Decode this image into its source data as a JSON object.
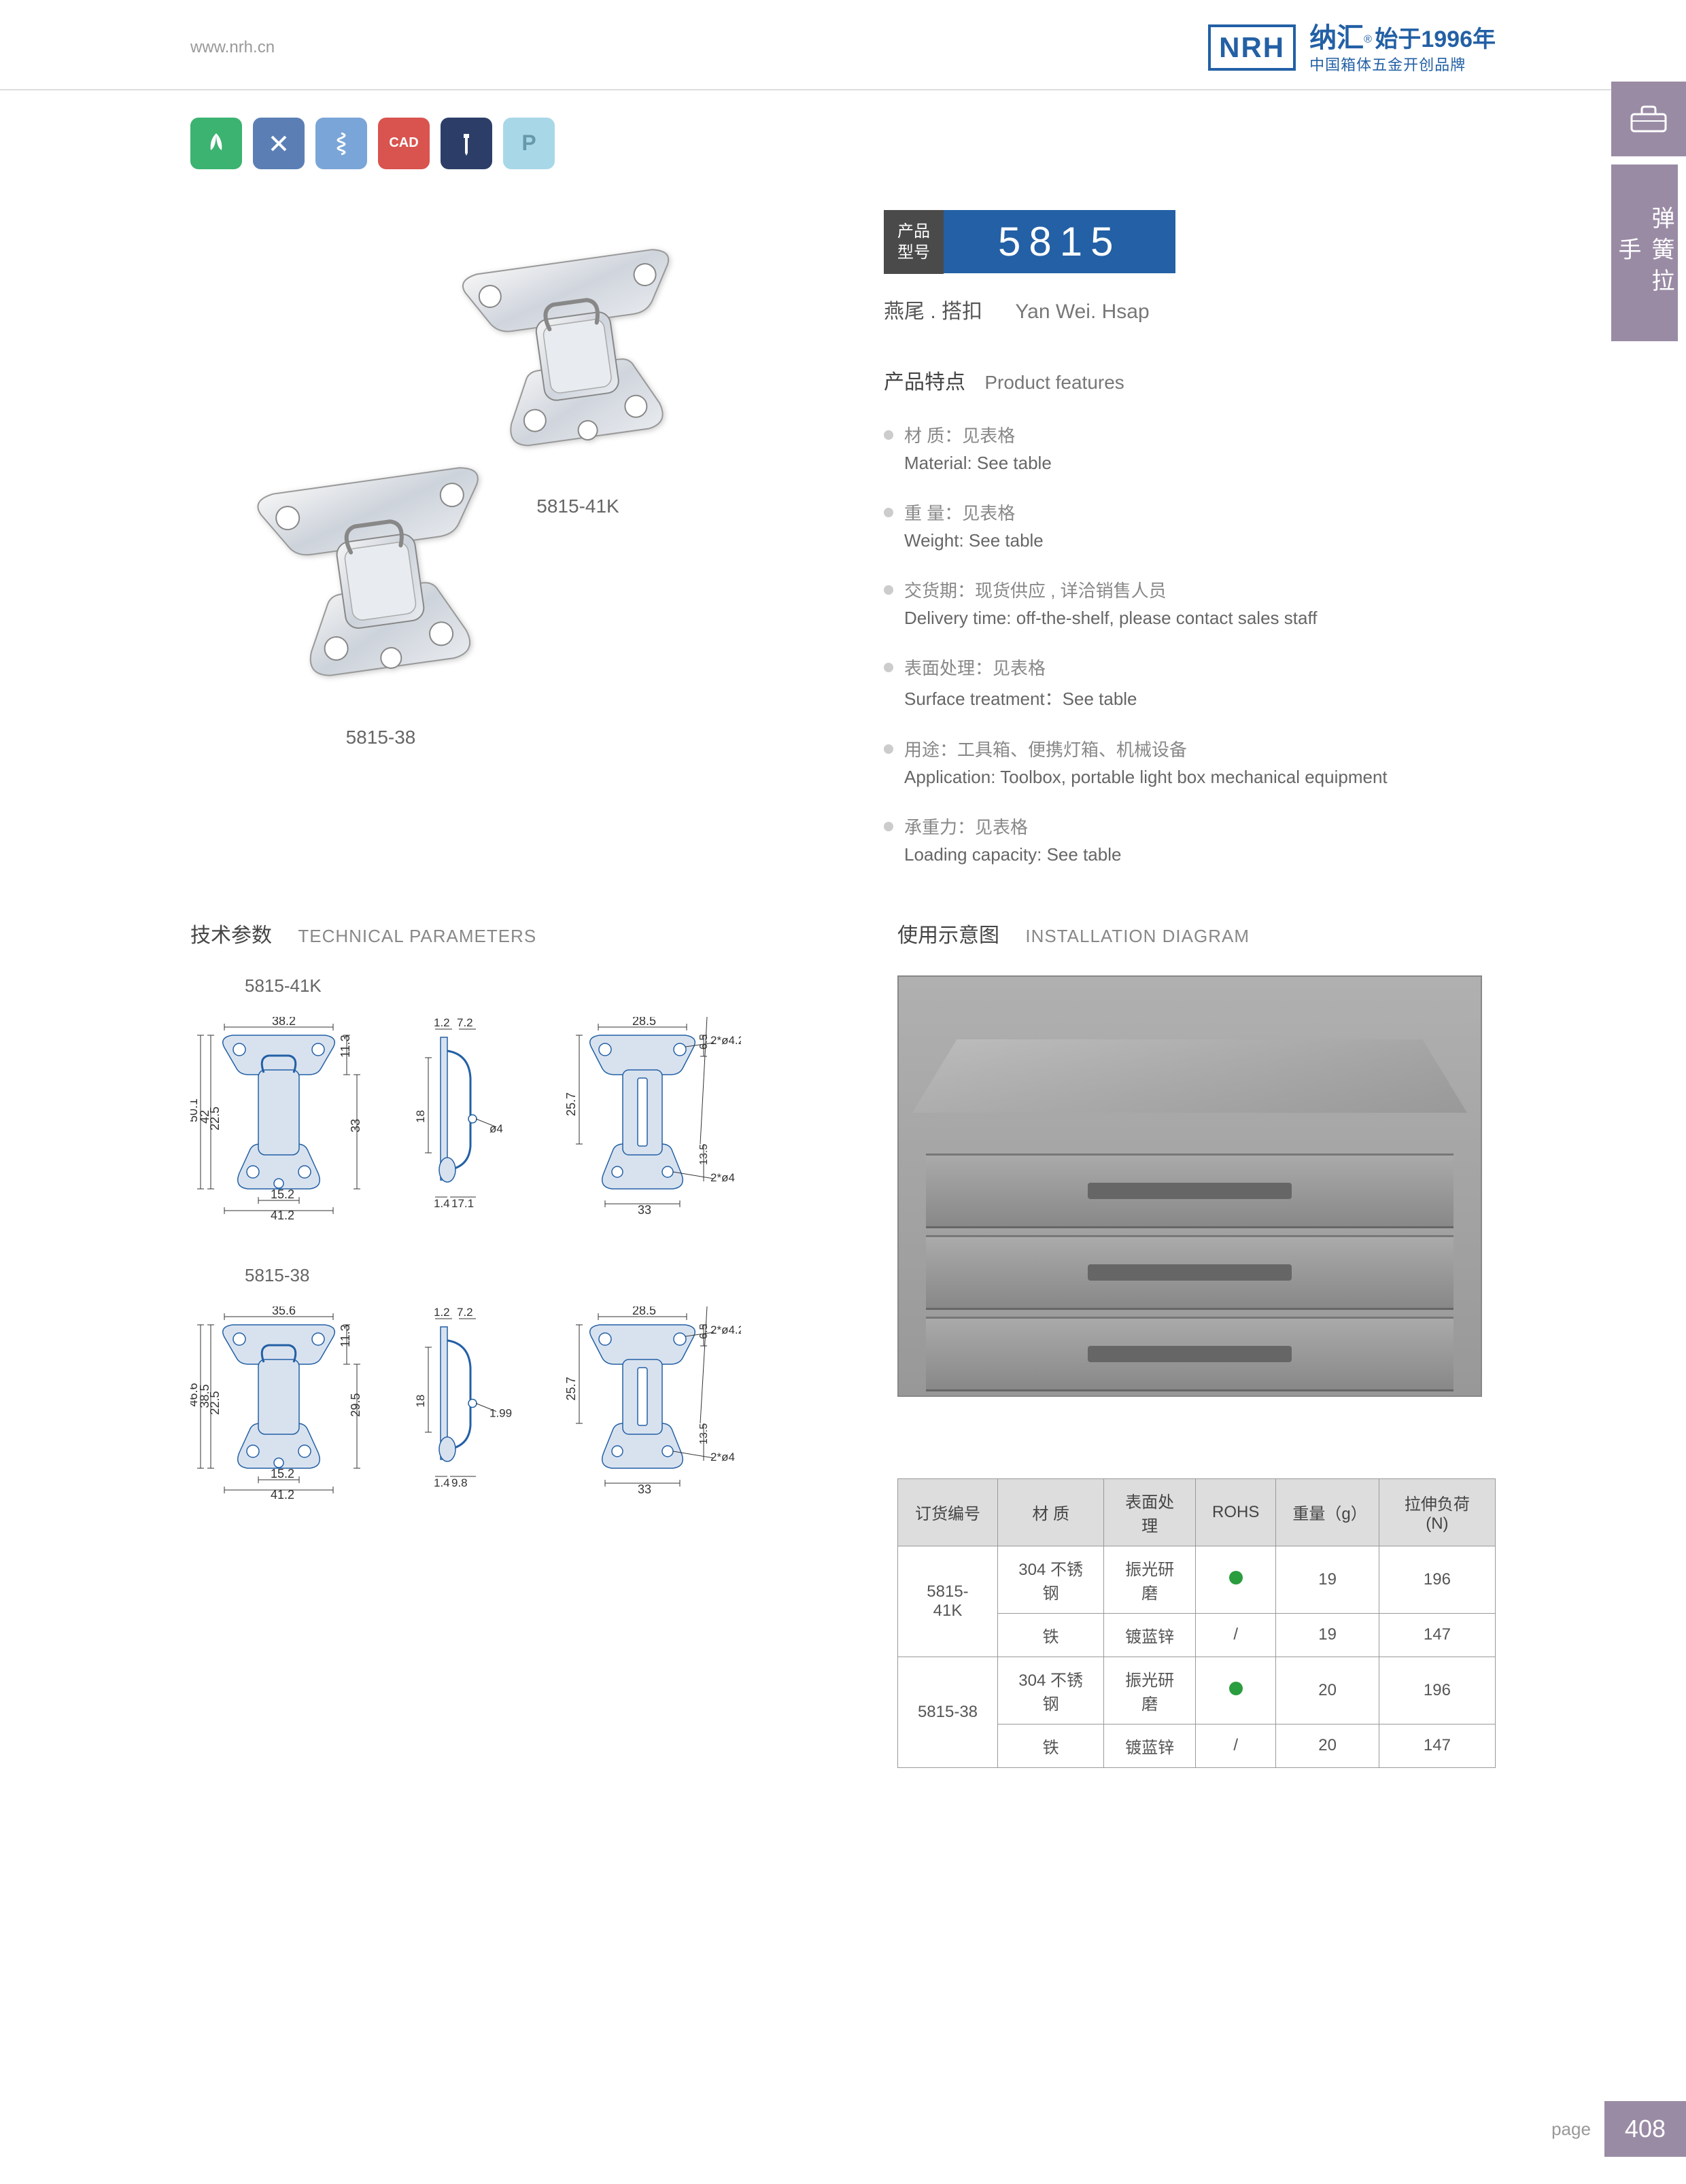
{
  "header": {
    "url": "www.nrh.cn",
    "logo": "NRH",
    "brand_cn": "纳汇",
    "since": "始于1996年",
    "tagline": "中国箱体五金开创品牌"
  },
  "side": {
    "label": "弹簧拉手"
  },
  "icons": [
    "leaf",
    "tools",
    "spring",
    "CAD",
    "screw",
    "P"
  ],
  "model": {
    "label_cn": "产品\n型号",
    "number": "5815",
    "subtitle_cn": "燕尾 . 搭扣",
    "subtitle_en": "Yan Wei. Hsap"
  },
  "product_labels": {
    "img1": "5815-41K",
    "img2": "5815-38"
  },
  "features": {
    "title_cn": "产品特点",
    "title_en": "Product features",
    "items": [
      {
        "cn": "材 质：见表格",
        "en": "Material: See table"
      },
      {
        "cn": "重 量：见表格",
        "en": "Weight: See table"
      },
      {
        "cn": "交货期：现货供应 , 详洽销售人员",
        "en": "Delivery time: off-the-shelf, please contact sales staff"
      },
      {
        "cn": "表面处理：见表格",
        "en": "Surface treatment：See table"
      },
      {
        "cn": "用途：工具箱、便携灯箱、机械设备",
        "en": "Application: Toolbox, portable light box mechanical equipment"
      },
      {
        "cn": "承重力：见表格",
        "en": "Loading capacity: See table"
      }
    ]
  },
  "tech": {
    "title_cn": "技术参数",
    "title_en": "TECHNICAL PARAMETERS"
  },
  "install": {
    "title_cn": "使用示意图",
    "title_en": "INSTALLATION DIAGRAM"
  },
  "drawings": {
    "group1": {
      "label": "5815-41K",
      "dims": {
        "w1": "38.2",
        "w2": "15.2",
        "w3": "41.2",
        "h1": "50.1",
        "h2": "42",
        "h3": "22.5",
        "h4": "11.3",
        "h5": "33",
        "s1": "1.2",
        "s2": "7.2",
        "s3": "1.4",
        "s4": "17.1",
        "sh": "18",
        "sd": "ø4",
        "r1": "28.5",
        "r2": "33",
        "rh1": "25.7",
        "rh2": "6.5",
        "rh3": "13.5",
        "rd1": "2*ø4.2",
        "rd2": "2*ø4"
      }
    },
    "group2": {
      "label": "5815-38",
      "dims": {
        "w1": "35.6",
        "w2": "15.2",
        "w3": "41.2",
        "h1": "46.6",
        "h2": "38.5",
        "h3": "22.5",
        "h4": "11.3",
        "h5": "29.5",
        "s1": "1.2",
        "s2": "7.2",
        "s3": "1.4",
        "s4": "9.8",
        "sh": "18",
        "sd": "1.99",
        "r1": "28.5",
        "r2": "33",
        "rh1": "25.7",
        "rh2": "6.5",
        "rh3": "13.5",
        "rd1": "2*ø4.2",
        "rd2": "2*ø4"
      }
    }
  },
  "spec_table": {
    "headers": [
      "订货编号",
      "材    质",
      "表面处理",
      "ROHS",
      "重量（g）",
      "拉伸负荷 (N)"
    ],
    "rows": [
      {
        "code": "5815-41K",
        "rowspan": 2,
        "material": "304 不锈钢",
        "surface": "振光研磨",
        "rohs": "dot",
        "weight": "19",
        "load": "196"
      },
      {
        "material": "铁",
        "surface": "镀蓝锌",
        "rohs": "/",
        "weight": "19",
        "load": "147"
      },
      {
        "code": "5815-38",
        "rowspan": 2,
        "material": "304 不锈钢",
        "surface": "振光研磨",
        "rohs": "dot",
        "weight": "20",
        "load": "196"
      },
      {
        "material": "铁",
        "surface": "镀蓝锌",
        "rohs": "/",
        "weight": "20",
        "load": "147"
      }
    ]
  },
  "footer": {
    "page_label": "page",
    "page_num": "408"
  }
}
